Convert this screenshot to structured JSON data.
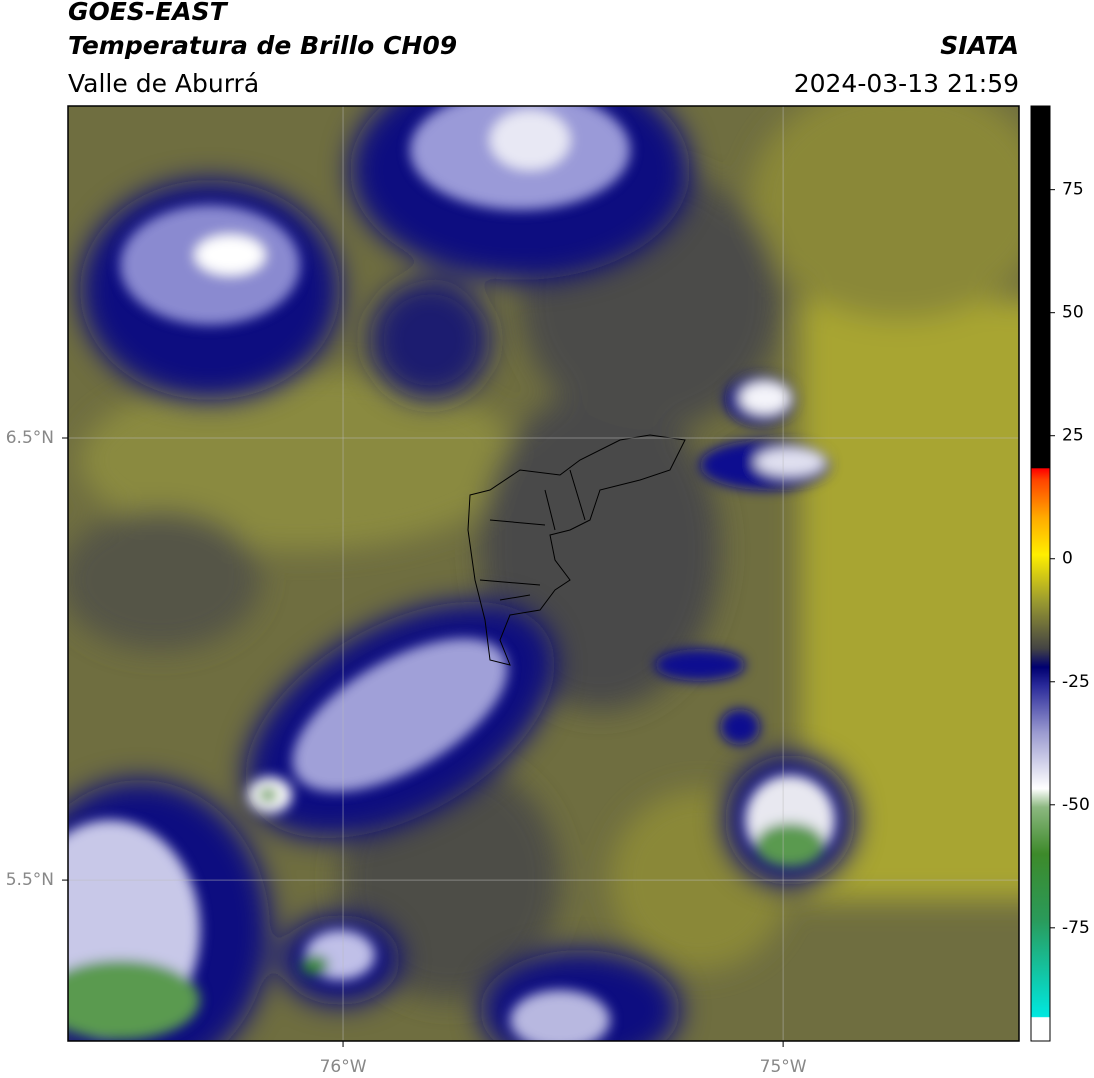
{
  "header": {
    "title": "GOES-EAST",
    "subtitle": "Temperatura de Brillo CH09",
    "region": "Valle de Aburrá",
    "source": "SIATA",
    "datetime": "2024-03-13 21:59"
  },
  "map": {
    "extent": {
      "lon": [
        -76.625,
        -74.464
      ],
      "lat": [
        5.136,
        7.251
      ]
    },
    "lat_ticks": [
      {
        "value": 6.5,
        "label": "6.5°N"
      },
      {
        "value": 5.5,
        "label": "5.5°N"
      }
    ],
    "lon_ticks": [
      {
        "value": -76,
        "label": "76°W"
      },
      {
        "value": -75,
        "label": "75°W"
      }
    ]
  },
  "colorbar": {
    "lim": [
      -98,
      92
    ],
    "ticks": [
      75,
      50,
      25,
      0,
      -25,
      -50,
      -75
    ]
  }
}
